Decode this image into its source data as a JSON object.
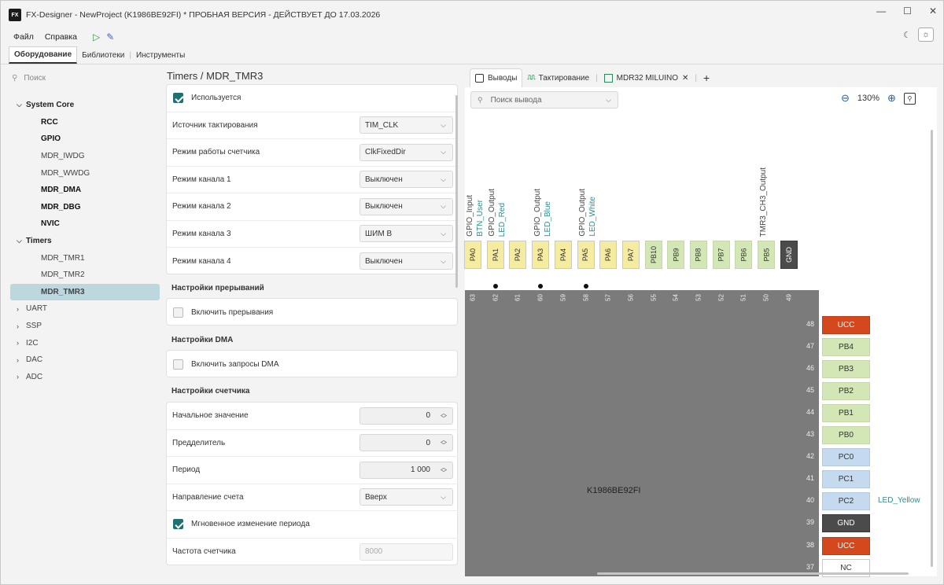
{
  "window": {
    "logo": "FX",
    "title": "FX-Designer - NewProject (K1986BE92FI) *   ПРОБНАЯ ВЕРСИЯ - ДЕЙСТВУЕТ ДО 17.03.2026",
    "minimize": "—",
    "maximize": "☐",
    "close": "✕"
  },
  "menu": {
    "file": "Файл",
    "help": "Справка"
  },
  "top_tabs": {
    "hardware": "Оборудование",
    "libraries": "Библиотеки",
    "tools": "Инструменты"
  },
  "sidebar": {
    "search_placeholder": "Поиск",
    "system_core": "System Core",
    "system_items": [
      "RCC",
      "GPIO",
      "MDR_IWDG",
      "MDR_WWDG",
      "MDR_DMA",
      "MDR_DBG",
      "NVIC"
    ],
    "timers": "Timers",
    "timer_items": [
      "MDR_TMR1",
      "MDR_TMR2",
      "MDR_TMR3"
    ],
    "collapsed": [
      "UART",
      "SSP",
      "I2C",
      "DAC",
      "ADC"
    ]
  },
  "breadcrumb": {
    "parent": "Timers",
    "sep": "/",
    "current": "MDR_TMR3"
  },
  "form": {
    "used": "Используется",
    "clock_source": {
      "label": "Источник тактирования",
      "value": "TIM_CLK"
    },
    "counter_mode": {
      "label": "Режим работы счетчика",
      "value": "ClkFixedDir"
    },
    "ch1": {
      "label": "Режим канала 1",
      "value": "Выключен"
    },
    "ch2": {
      "label": "Режим канала 2",
      "value": "Выключен"
    },
    "ch3": {
      "label": "Режим канала 3",
      "value": "ШИМ В"
    },
    "ch4": {
      "label": "Режим канала 4",
      "value": "Выключен"
    },
    "interrupts_title": "Настройки прерываний",
    "interrupts_enable": "Включить прерывания",
    "dma_title": "Настройки DMA",
    "dma_enable": "Включить запросы DMA",
    "counter_title": "Настройки счетчика",
    "initial": {
      "label": "Начальное значение",
      "value": "0"
    },
    "prescaler": {
      "label": "Предделитель",
      "value": "0"
    },
    "period": {
      "label": "Период",
      "value": "1 000"
    },
    "direction": {
      "label": "Направление счета",
      "value": "Вверх"
    },
    "instant_period": "Мгновенное изменение периода",
    "frequency": {
      "label": "Частота счетчика",
      "placeholder": "8000"
    }
  },
  "right_tabs": {
    "pins": "Выводы",
    "clock": "Тактирование",
    "board": "MDR32 MILUINO",
    "board_close": "✕",
    "add": "+"
  },
  "pin_search_placeholder": "Поиск вывода",
  "zoom": {
    "level": "130%"
  },
  "chip_name": "K1986BE92FI",
  "top_pins": [
    {
      "name": "PA0",
      "num": "63",
      "signal": "GPIO_Input",
      "label": "BTN_User",
      "color": "yellow",
      "dot": false
    },
    {
      "name": "PA1",
      "num": "62",
      "signal": "GPIO_Output",
      "label": "LED_Red",
      "color": "yellow",
      "dot": true
    },
    {
      "name": "PA2",
      "num": "61",
      "signal": "",
      "label": "",
      "color": "yellow",
      "dot": false
    },
    {
      "name": "PA3",
      "num": "60",
      "signal": "GPIO_Output",
      "label": "LED_Blue",
      "color": "yellow",
      "dot": true
    },
    {
      "name": "PA4",
      "num": "59",
      "signal": "",
      "label": "",
      "color": "yellow",
      "dot": false
    },
    {
      "name": "PA5",
      "num": "58",
      "signal": "GPIO_Output",
      "label": "LED_White",
      "color": "yellow",
      "dot": true
    },
    {
      "name": "PA6",
      "num": "57",
      "signal": "",
      "label": "",
      "color": "yellow",
      "dot": false
    },
    {
      "name": "PA7",
      "num": "56",
      "signal": "",
      "label": "",
      "color": "yellow",
      "dot": false
    },
    {
      "name": "PB10",
      "num": "55",
      "signal": "",
      "label": "",
      "color": "green",
      "dot": false
    },
    {
      "name": "PB9",
      "num": "54",
      "signal": "",
      "label": "",
      "color": "green",
      "dot": false
    },
    {
      "name": "PB8",
      "num": "53",
      "signal": "",
      "label": "",
      "color": "green",
      "dot": false
    },
    {
      "name": "PB7",
      "num": "52",
      "signal": "",
      "label": "",
      "color": "green",
      "dot": false
    },
    {
      "name": "PB6",
      "num": "51",
      "signal": "",
      "label": "",
      "color": "green",
      "dot": false
    },
    {
      "name": "PB5",
      "num": "50",
      "signal": "TMR3_CH3_Output",
      "label": "",
      "color": "green",
      "dot": false
    },
    {
      "name": "GND",
      "num": "49",
      "signal": "",
      "label": "",
      "color": "gnd",
      "dot": false
    }
  ],
  "right_pins": [
    {
      "name": "UCC",
      "num": "48",
      "color": "red",
      "label": ""
    },
    {
      "name": "PB4",
      "num": "47",
      "color": "green",
      "label": ""
    },
    {
      "name": "PB3",
      "num": "46",
      "color": "green",
      "label": ""
    },
    {
      "name": "PB2",
      "num": "45",
      "color": "green",
      "label": ""
    },
    {
      "name": "PB1",
      "num": "44",
      "color": "green",
      "label": ""
    },
    {
      "name": "PB0",
      "num": "43",
      "color": "green",
      "label": ""
    },
    {
      "name": "PC0",
      "num": "42",
      "color": "blue",
      "label": ""
    },
    {
      "name": "PC1",
      "num": "41",
      "color": "blue",
      "label": ""
    },
    {
      "name": "PC2",
      "num": "40",
      "color": "blue",
      "label": "LED_Yellow"
    },
    {
      "name": "GND",
      "num": "39",
      "color": "gnd",
      "label": ""
    },
    {
      "name": "UCC",
      "num": "38",
      "color": "red",
      "label": ""
    },
    {
      "name": "NC",
      "num": "37",
      "color": "nc",
      "label": ""
    }
  ]
}
